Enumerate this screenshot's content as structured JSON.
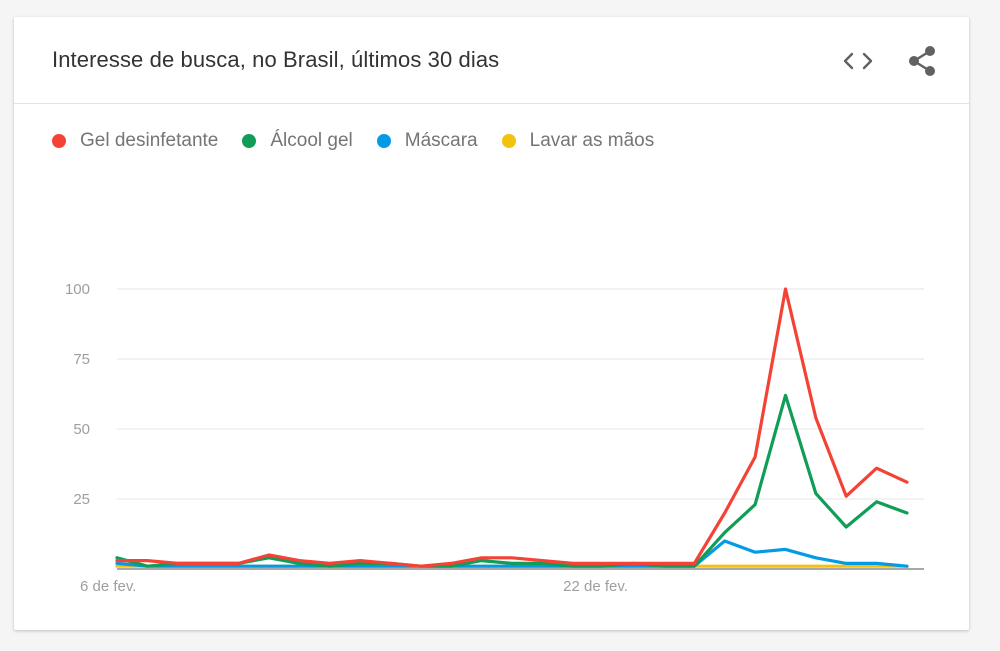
{
  "title": "Interesse de busca, no Brasil, últimos 30 dias",
  "icons": {
    "embed": "embed-code-icon",
    "share": "share-icon"
  },
  "chart_data": {
    "type": "line",
    "x_tick_labels": [
      "6 de fev.",
      "22 de fev."
    ],
    "y_ticks": [
      25,
      50,
      75,
      100
    ],
    "ylim": [
      0,
      100
    ],
    "grid": true,
    "legend_position": "top-left",
    "series": [
      {
        "name": "Gel desinfetante",
        "color": "#f44336",
        "values": [
          3,
          3,
          2,
          2,
          2,
          5,
          3,
          2,
          3,
          2,
          1,
          2,
          4,
          4,
          3,
          2,
          2,
          2,
          2,
          2,
          20,
          40,
          100,
          54,
          26,
          36,
          31
        ]
      },
      {
        "name": "Álcool gel",
        "color": "#0f9d58",
        "values": [
          4,
          1,
          2,
          2,
          2,
          4,
          2,
          1,
          2,
          2,
          1,
          1,
          3,
          2,
          2,
          1,
          1,
          2,
          1,
          1,
          13,
          23,
          62,
          27,
          15,
          24,
          20
        ]
      },
      {
        "name": "Máscara",
        "color": "#039be5",
        "values": [
          2,
          1,
          1,
          1,
          1,
          1,
          1,
          1,
          1,
          1,
          1,
          1,
          1,
          1,
          1,
          1,
          1,
          1,
          1,
          1,
          10,
          6,
          7,
          4,
          2,
          2,
          1
        ]
      },
      {
        "name": "Lavar as mãos",
        "color": "#f4c20d",
        "values": [
          1,
          1,
          1,
          1,
          1,
          1,
          1,
          1,
          1,
          1,
          1,
          1,
          1,
          1,
          1,
          1,
          1,
          1,
          1,
          1,
          1,
          1,
          1,
          1,
          1,
          1,
          1
        ]
      }
    ]
  }
}
